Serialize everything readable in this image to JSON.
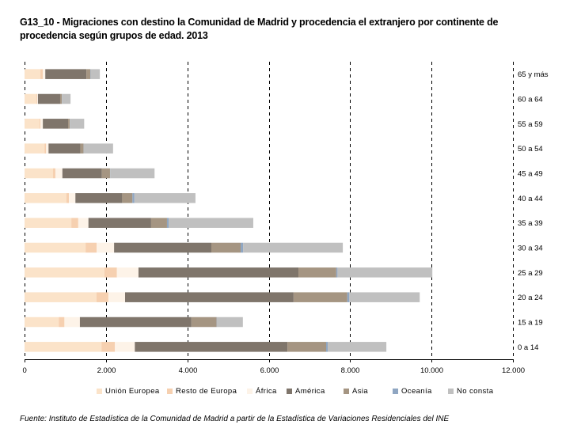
{
  "title": "G13_10 - Migraciones con destino la Comunidad de Madrid y procedencia el extranjero por continente de procedencia según grupos de edad. 2013",
  "source": "Fuente: Instituto de Estadística de la Comunidad de Madrid a partir de la Estadística de Variaciones Residenciales del  INE",
  "chart_data": {
    "type": "bar",
    "orientation": "horizontal",
    "stacked": true,
    "title": "G13_10 - Migraciones con destino la Comunidad de Madrid y procedencia el extranjero por continente de procedencia según grupos de edad. 2013",
    "xlabel": "",
    "ylabel": "",
    "xlim": [
      0,
      12000
    ],
    "xticks": [
      0,
      2000,
      4000,
      6000,
      8000,
      10000,
      12000
    ],
    "xtick_labels": [
      "0",
      "2.000",
      "4.000",
      "6.000",
      "8.000",
      "10.000",
      "12.000"
    ],
    "grid": "vertical dashed",
    "category_axis_position": "right",
    "legend_position": "bottom",
    "categories": [
      "65 y más",
      "60 a 64",
      "55 a 59",
      "50 a 54",
      "45 a 49",
      "40 a 44",
      "35 a 39",
      "30 a 34",
      "25 a 29",
      "20 a 24",
      "15 a 19",
      "0 a 14"
    ],
    "series": [
      {
        "name": "Unión Europea",
        "color": "#fbe3c9",
        "values": [
          390,
          290,
          370,
          490,
          700,
          1030,
          1150,
          1500,
          1960,
          1770,
          840,
          1890
        ]
      },
      {
        "name": "Resto de Europa",
        "color": "#f6d0b0",
        "values": [
          60,
          20,
          20,
          40,
          60,
          60,
          170,
          270,
          310,
          290,
          140,
          330
        ]
      },
      {
        "name": "África",
        "color": "#fdf3e8",
        "values": [
          60,
          20,
          60,
          60,
          170,
          160,
          250,
          430,
          530,
          410,
          380,
          490
        ]
      },
      {
        "name": "América",
        "color": "#7f756b",
        "values": [
          1010,
          545,
          620,
          780,
          970,
          1150,
          1540,
          2390,
          3930,
          4140,
          2740,
          3750
        ]
      },
      {
        "name": "Asia",
        "color": "#a59582",
        "values": [
          100,
          40,
          40,
          80,
          200,
          250,
          390,
          720,
          930,
          1320,
          620,
          950
        ]
      },
      {
        "name": "Oceanía",
        "color": "#8fa6c2",
        "values": [
          10,
          5,
          5,
          5,
          5,
          50,
          40,
          60,
          30,
          50,
          5,
          40
        ]
      },
      {
        "name": "No consta",
        "color": "#c0c0c0",
        "values": [
          220,
          210,
          350,
          720,
          1090,
          1500,
          2080,
          2450,
          2330,
          1730,
          640,
          1440
        ]
      }
    ]
  }
}
